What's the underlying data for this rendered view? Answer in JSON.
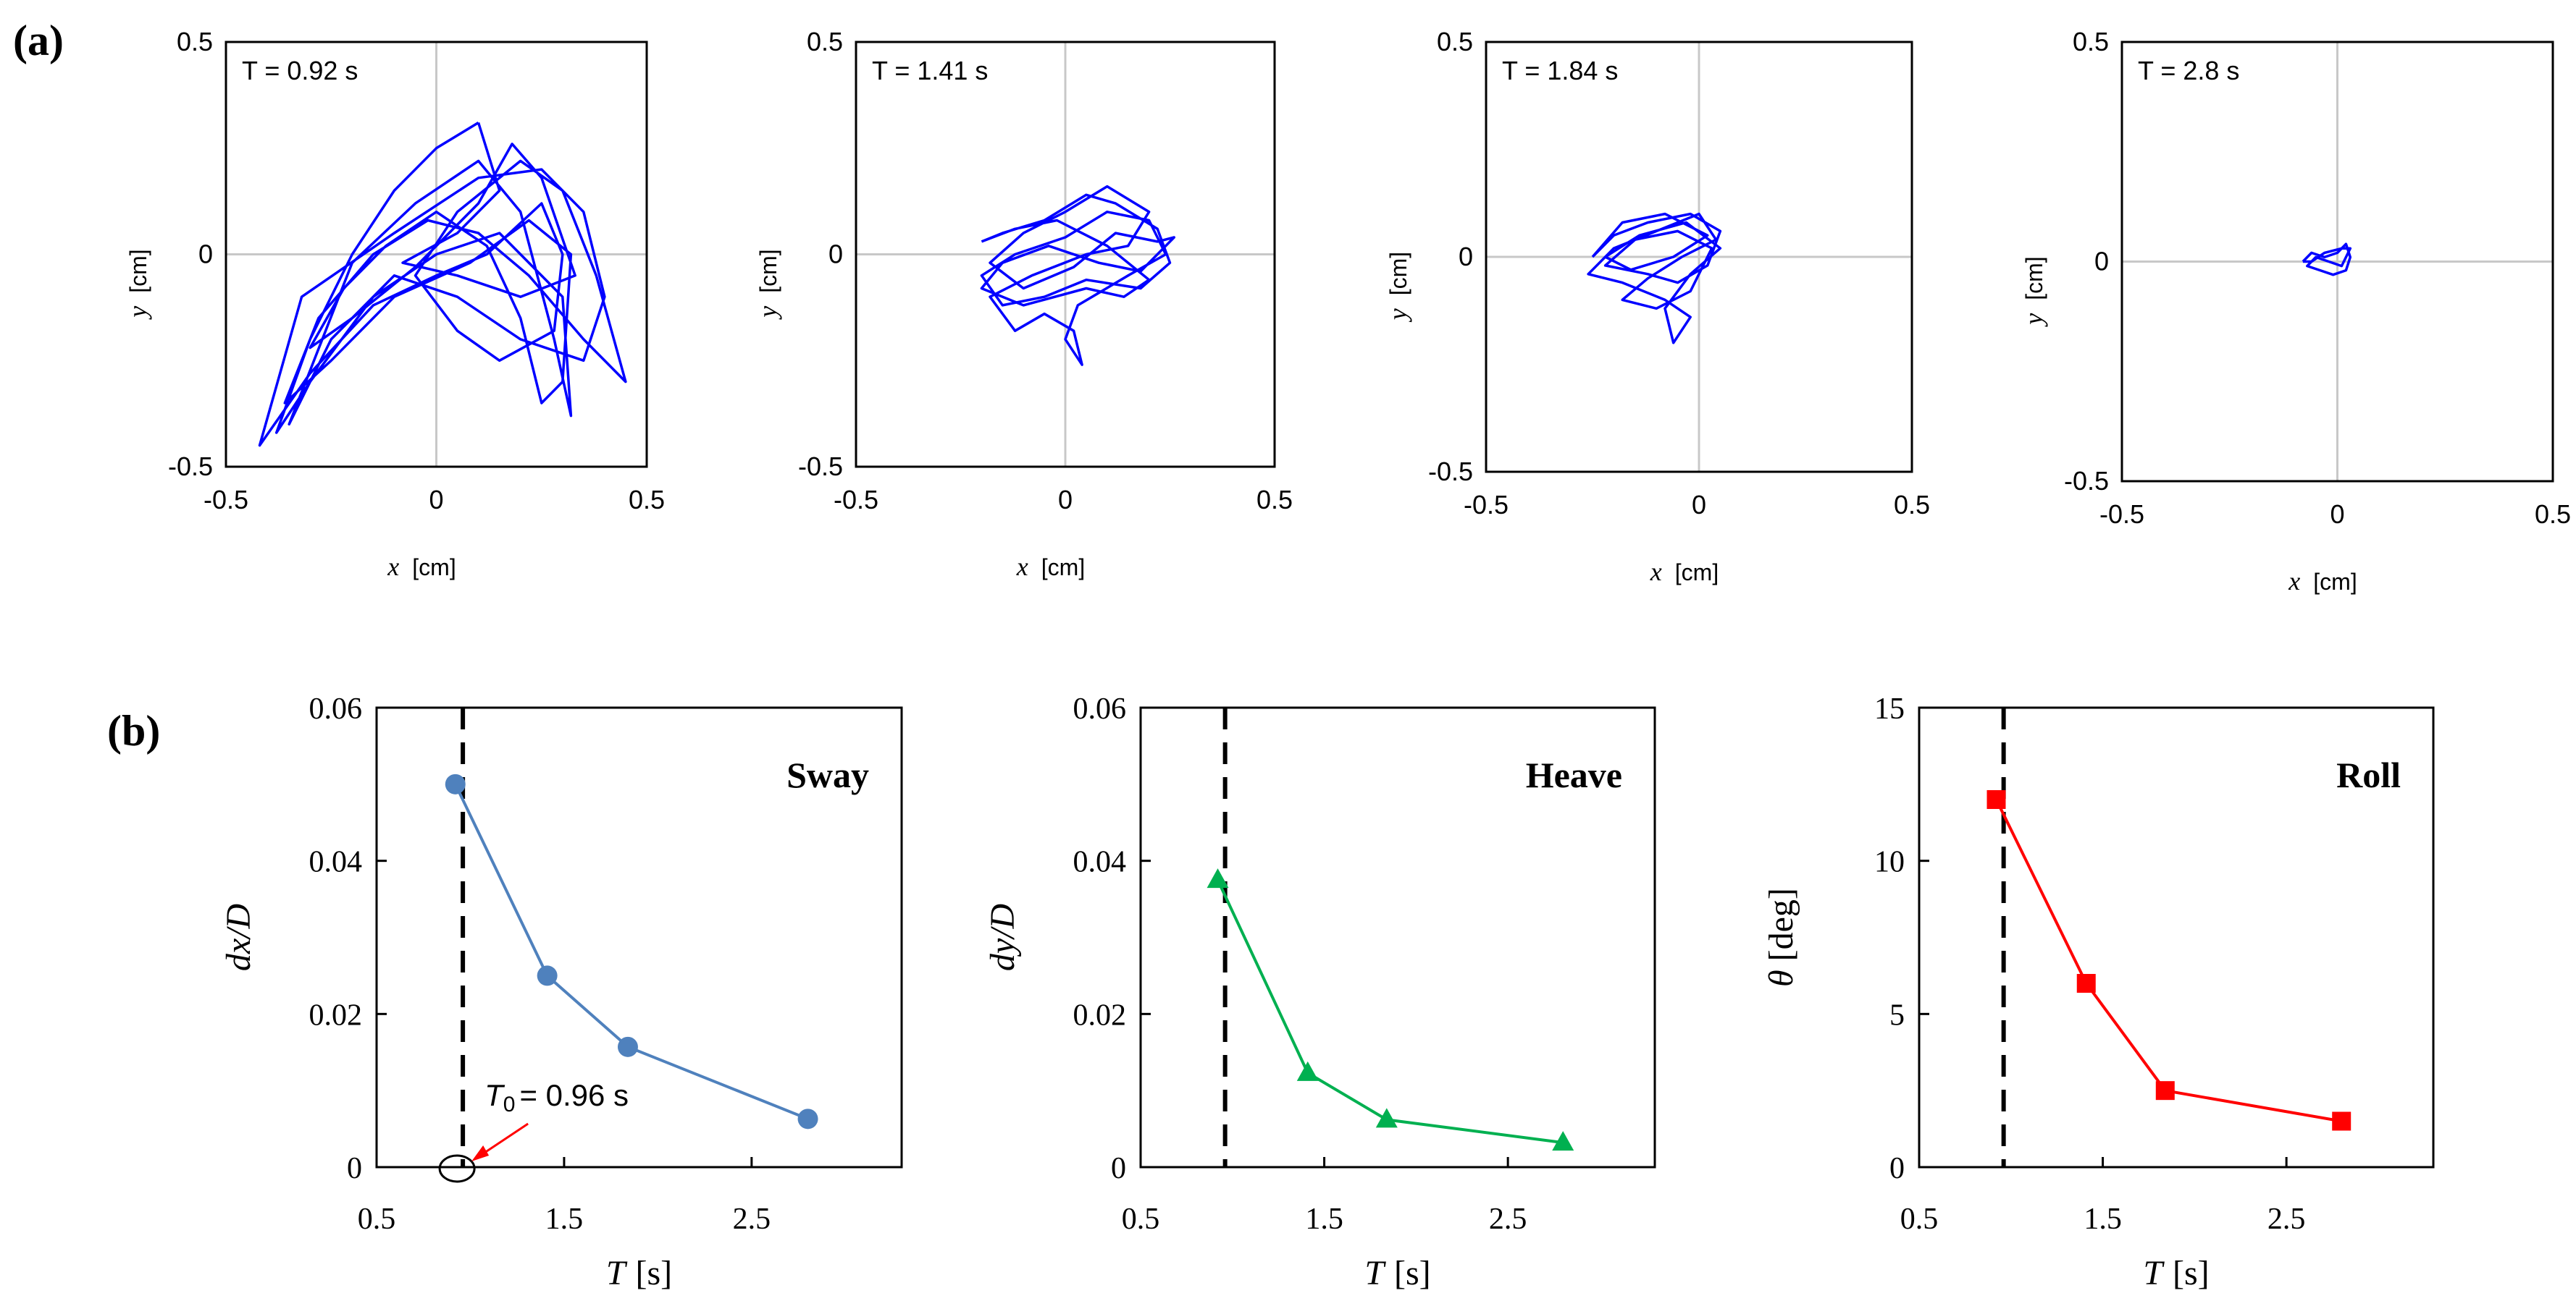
{
  "panel_labels": {
    "a": "(a)",
    "b": "(b)"
  },
  "chart_data": [
    {
      "type": "line",
      "panel": "a",
      "annotation": "T = 0.92 s",
      "xlabel": "x",
      "xunit": "[cm]",
      "ylabel": "y",
      "yunit": "[cm]",
      "xlim": [
        -0.5,
        0.5
      ],
      "ylim": [
        -0.5,
        0.5
      ],
      "xticks": [
        "-0.5",
        "0",
        "0.5"
      ],
      "yticks": [
        "-0.5",
        "0",
        "0.5"
      ],
      "color": "#0000ff",
      "series": [
        {
          "points": [
            [
              0.1,
              0.31
            ],
            [
              0.0,
              0.25
            ],
            [
              -0.1,
              0.15
            ],
            [
              -0.2,
              0.0
            ],
            [
              -0.3,
              -0.2
            ],
            [
              -0.38,
              -0.42
            ],
            [
              -0.3,
              -0.3
            ],
            [
              -0.15,
              -0.1
            ],
            [
              0.0,
              0.0
            ],
            [
              0.15,
              0.05
            ],
            [
              0.3,
              -0.1
            ],
            [
              0.32,
              -0.38
            ],
            [
              0.28,
              -0.2
            ],
            [
              0.2,
              0.1
            ],
            [
              0.1,
              0.22
            ],
            [
              -0.05,
              0.12
            ],
            [
              -0.2,
              -0.02
            ],
            [
              -0.35,
              -0.4
            ],
            [
              -0.25,
              -0.2
            ],
            [
              -0.1,
              -0.05
            ],
            [
              0.05,
              -0.1
            ],
            [
              0.2,
              -0.2
            ],
            [
              0.35,
              -0.25
            ],
            [
              0.4,
              -0.1
            ],
            [
              0.35,
              0.1
            ],
            [
              0.25,
              0.2
            ],
            [
              0.1,
              0.18
            ],
            [
              -0.1,
              0.05
            ],
            [
              -0.32,
              -0.1
            ],
            [
              -0.42,
              -0.45
            ],
            [
              -0.3,
              -0.28
            ],
            [
              -0.15,
              -0.12
            ],
            [
              0.0,
              -0.05
            ],
            [
              0.12,
              0.0
            ],
            [
              0.25,
              0.12
            ],
            [
              0.3,
              0.0
            ],
            [
              0.28,
              -0.18
            ],
            [
              0.15,
              -0.25
            ],
            [
              0.05,
              -0.18
            ],
            [
              -0.05,
              -0.05
            ],
            [
              0.05,
              0.1
            ],
            [
              0.2,
              0.22
            ],
            [
              0.3,
              0.15
            ],
            [
              0.38,
              -0.05
            ],
            [
              0.45,
              -0.3
            ],
            [
              0.35,
              -0.2
            ],
            [
              0.22,
              -0.05
            ],
            [
              0.1,
              0.05
            ],
            [
              -0.02,
              0.08
            ],
            [
              -0.15,
              0.0
            ],
            [
              -0.28,
              -0.15
            ],
            [
              -0.36,
              -0.35
            ],
            [
              -0.25,
              -0.25
            ],
            [
              -0.1,
              -0.1
            ],
            [
              0.08,
              -0.02
            ],
            [
              0.22,
              0.08
            ],
            [
              0.32,
              0.0
            ],
            [
              0.3,
              -0.3
            ],
            [
              0.25,
              -0.35
            ],
            [
              0.2,
              -0.15
            ],
            [
              0.12,
              0.02
            ],
            [
              0.0,
              0.1
            ],
            [
              -0.12,
              0.02
            ],
            [
              -0.22,
              -0.08
            ],
            [
              -0.3,
              -0.22
            ],
            [
              -0.2,
              -0.15
            ],
            [
              -0.05,
              -0.03
            ],
            [
              0.1,
              0.12
            ],
            [
              0.18,
              0.26
            ],
            [
              0.25,
              0.18
            ],
            [
              0.33,
              -0.05
            ],
            [
              0.2,
              -0.1
            ],
            [
              0.05,
              -0.05
            ],
            [
              -0.08,
              -0.02
            ],
            [
              0.05,
              0.05
            ],
            [
              0.15,
              0.15
            ],
            [
              0.1,
              0.31
            ]
          ]
        }
      ]
    },
    {
      "type": "line",
      "panel": "a",
      "annotation": "T = 1.41 s",
      "xlabel": "x",
      "xunit": "[cm]",
      "ylabel": "y",
      "yunit": "[cm]",
      "xlim": [
        -0.5,
        0.5
      ],
      "ylim": [
        -0.5,
        0.5
      ],
      "xticks": [
        "-0.5",
        "0",
        "0.5"
      ],
      "yticks": [
        "-0.5",
        "0",
        "0.5"
      ],
      "color": "#0000ff",
      "series": [
        {
          "points": [
            [
              -0.2,
              0.03
            ],
            [
              -0.15,
              0.05
            ],
            [
              -0.05,
              0.08
            ],
            [
              0.05,
              0.14
            ],
            [
              0.12,
              0.12
            ],
            [
              0.22,
              0.06
            ],
            [
              0.25,
              -0.02
            ],
            [
              0.18,
              -0.08
            ],
            [
              0.05,
              -0.06
            ],
            [
              -0.05,
              -0.1
            ],
            [
              -0.15,
              -0.12
            ],
            [
              -0.2,
              -0.05
            ],
            [
              -0.12,
              0.0
            ],
            [
              0.0,
              0.04
            ],
            [
              0.1,
              0.1
            ],
            [
              0.2,
              0.08
            ],
            [
              0.24,
              0.0
            ],
            [
              0.15,
              -0.05
            ],
            [
              0.03,
              -0.12
            ],
            [
              0.0,
              -0.2
            ],
            [
              0.04,
              -0.26
            ],
            [
              0.02,
              -0.18
            ],
            [
              -0.05,
              -0.14
            ],
            [
              -0.12,
              -0.18
            ],
            [
              -0.18,
              -0.1
            ],
            [
              -0.08,
              -0.05
            ],
            [
              0.05,
              0.0
            ],
            [
              0.15,
              0.02
            ],
            [
              0.2,
              0.1
            ],
            [
              0.1,
              0.16
            ],
            [
              0.0,
              0.1
            ],
            [
              -0.1,
              0.05
            ],
            [
              -0.18,
              -0.02
            ],
            [
              -0.1,
              -0.08
            ],
            [
              0.02,
              -0.03
            ],
            [
              0.12,
              0.05
            ],
            [
              0.22,
              0.03
            ],
            [
              0.26,
              0.04
            ],
            [
              0.18,
              -0.04
            ],
            [
              0.08,
              -0.02
            ],
            [
              -0.04,
              0.02
            ],
            [
              -0.15,
              -0.02
            ],
            [
              -0.2,
              -0.08
            ],
            [
              -0.1,
              -0.12
            ],
            [
              0.05,
              -0.08
            ],
            [
              0.14,
              -0.1
            ],
            [
              0.2,
              -0.06
            ],
            [
              0.1,
              0.02
            ],
            [
              -0.02,
              0.08
            ],
            [
              -0.12,
              0.06
            ],
            [
              -0.2,
              0.03
            ]
          ]
        }
      ]
    },
    {
      "type": "line",
      "panel": "a",
      "annotation": "T = 1.84 s",
      "xlabel": "x",
      "xunit": "[cm]",
      "ylabel": "y",
      "yunit": "[cm]",
      "xlim": [
        -0.5,
        0.5
      ],
      "ylim": [
        -0.5,
        0.5
      ],
      "xticks": [
        "-0.5",
        "0",
        "0.5"
      ],
      "yticks": [
        "-0.5",
        "0",
        "0.5"
      ],
      "color": "#0000ff",
      "series": [
        {
          "points": [
            [
              -0.25,
              0.0
            ],
            [
              -0.2,
              0.05
            ],
            [
              -0.12,
              0.08
            ],
            [
              -0.02,
              0.1
            ],
            [
              0.05,
              0.06
            ],
            [
              0.02,
              -0.02
            ],
            [
              -0.05,
              -0.06
            ],
            [
              -0.12,
              -0.04
            ],
            [
              -0.22,
              -0.02
            ],
            [
              -0.15,
              0.04
            ],
            [
              -0.05,
              0.06
            ],
            [
              0.03,
              0.02
            ],
            [
              -0.02,
              -0.08
            ],
            [
              -0.1,
              -0.12
            ],
            [
              -0.18,
              -0.1
            ],
            [
              -0.12,
              -0.05
            ],
            [
              -0.04,
              0.0
            ],
            [
              0.04,
              0.04
            ],
            [
              0.0,
              0.1
            ],
            [
              -0.1,
              0.06
            ],
            [
              -0.2,
              0.02
            ],
            [
              -0.26,
              -0.04
            ],
            [
              -0.18,
              -0.06
            ],
            [
              -0.08,
              -0.1
            ],
            [
              -0.02,
              -0.14
            ],
            [
              -0.06,
              -0.2
            ],
            [
              -0.08,
              -0.12
            ],
            [
              -0.02,
              -0.04
            ],
            [
              0.05,
              0.02
            ],
            [
              -0.03,
              0.08
            ],
            [
              -0.14,
              0.05
            ],
            [
              -0.22,
              0.0
            ],
            [
              -0.16,
              -0.03
            ],
            [
              -0.06,
              0.0
            ],
            [
              0.02,
              0.05
            ],
            [
              -0.08,
              0.1
            ],
            [
              -0.18,
              0.08
            ],
            [
              -0.25,
              0.0
            ]
          ]
        }
      ]
    },
    {
      "type": "line",
      "panel": "a",
      "annotation": "T = 2.8 s",
      "xlabel": "x",
      "xunit": "[cm]",
      "ylabel": "y",
      "yunit": "[cm]",
      "xlim": [
        -0.5,
        0.5
      ],
      "ylim": [
        -0.5,
        0.5
      ],
      "xticks": [
        "-0.5",
        "0",
        "0.5"
      ],
      "yticks": [
        "-0.5",
        "0",
        "0.5"
      ],
      "color": "#0000ff",
      "series": [
        {
          "points": [
            [
              -0.08,
              0.0
            ],
            [
              -0.06,
              0.02
            ],
            [
              -0.03,
              0.01
            ],
            [
              0.0,
              0.02
            ],
            [
              0.02,
              0.04
            ],
            [
              0.03,
              0.01
            ],
            [
              0.02,
              -0.02
            ],
            [
              -0.01,
              -0.03
            ],
            [
              -0.04,
              -0.02
            ],
            [
              -0.07,
              -0.01
            ],
            [
              -0.05,
              0.01
            ],
            [
              -0.02,
              0.0
            ],
            [
              0.01,
              -0.01
            ],
            [
              0.03,
              0.03
            ],
            [
              0.01,
              0.03
            ],
            [
              -0.03,
              0.02
            ],
            [
              -0.06,
              0.0
            ],
            [
              -0.08,
              0.0
            ]
          ]
        }
      ]
    },
    {
      "type": "line",
      "panel": "b",
      "title": "Sway",
      "xlabel": "T",
      "xunit": "[s]",
      "ylabel": "dx/D",
      "xlim": [
        0.5,
        3.3
      ],
      "ylim": [
        0,
        0.06
      ],
      "xticks": [
        "0.5",
        "1.5",
        "2.5"
      ],
      "yticks": [
        "0",
        "0.02",
        "0.04",
        "0.06"
      ],
      "marker": "circle",
      "color": "#4f81bd",
      "x": [
        0.92,
        1.41,
        1.84,
        2.8
      ],
      "y": [
        0.05,
        0.025,
        0.0157,
        0.0063
      ],
      "vline": 0.96,
      "annotation_text": "T",
      "annotation_sub": "0",
      "annotation_value": "= 0.96 s",
      "annotation_color": "#ff0000"
    },
    {
      "type": "line",
      "panel": "b",
      "title": "Heave",
      "xlabel": "T",
      "xunit": "[s]",
      "ylabel": "dy/D",
      "xlim": [
        0.5,
        3.3
      ],
      "ylim": [
        0,
        0.06
      ],
      "xticks": [
        "0.5",
        "1.5",
        "2.5"
      ],
      "yticks": [
        "0",
        "0.02",
        "0.04",
        "0.06"
      ],
      "marker": "triangle",
      "color": "#00b050",
      "x": [
        0.92,
        1.41,
        1.84,
        2.8
      ],
      "y": [
        0.0375,
        0.0123,
        0.0062,
        0.0032
      ],
      "vline": 0.96
    },
    {
      "type": "line",
      "panel": "b",
      "title": "Roll",
      "xlabel": "T",
      "xunit": "[s]",
      "ylabel": "θ",
      "yunit": "[deg]",
      "xlim": [
        0.5,
        3.3
      ],
      "ylim": [
        0,
        15
      ],
      "xticks": [
        "0.5",
        "1.5",
        "2.5"
      ],
      "yticks": [
        "0",
        "5",
        "10",
        "15"
      ],
      "marker": "square",
      "color": "#ff0000",
      "x": [
        0.92,
        1.41,
        1.84,
        2.8
      ],
      "y": [
        12.0,
        6.0,
        2.5,
        1.5
      ],
      "vline": 0.96
    }
  ]
}
